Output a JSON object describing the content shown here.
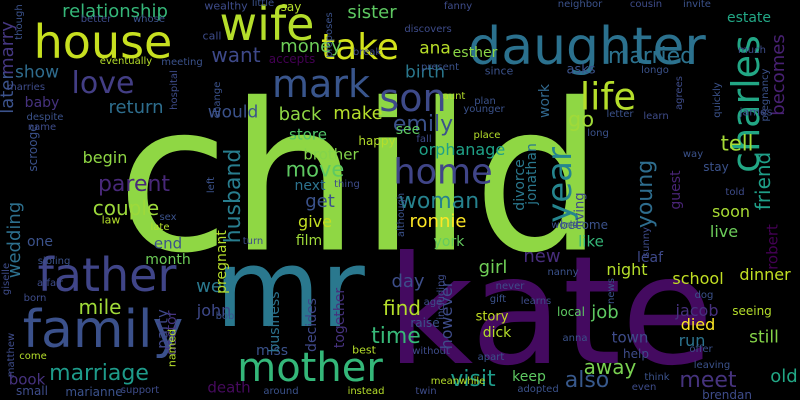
{
  "palette": {
    "background": "#000000"
  },
  "words": [
    {
      "text": "child",
      "color": "#8fd744"
    },
    {
      "text": "kate",
      "color": "#440a60"
    },
    {
      "text": "mr",
      "color": "#2a788e"
    },
    {
      "text": "daughter",
      "color": "#2b718e"
    },
    {
      "text": "house",
      "color": "#c7e020"
    },
    {
      "text": "wife",
      "color": "#b5de2b"
    },
    {
      "text": "take",
      "color": "#d2e21b"
    },
    {
      "text": "mark",
      "color": "#39558c"
    },
    {
      "text": "son",
      "color": "#3e4a89"
    },
    {
      "text": "love",
      "color": "#433e85"
    },
    {
      "text": "father",
      "color": "#404588"
    },
    {
      "text": "family",
      "color": "#3b518b"
    },
    {
      "text": "mother",
      "color": "#34b779"
    },
    {
      "text": "home",
      "color": "#404588"
    },
    {
      "text": "life",
      "color": "#b5de2b"
    },
    {
      "text": "charles",
      "color": "#22a785"
    },
    {
      "text": "year",
      "color": "#25858e"
    },
    {
      "text": "relationship",
      "color": "#35b779"
    },
    {
      "text": "sister",
      "color": "#5ec962"
    },
    {
      "text": "marry",
      "color": "#453781"
    },
    {
      "text": "later",
      "color": "#3b528b"
    },
    {
      "text": "wedding",
      "color": "#2d708e"
    },
    {
      "text": "married",
      "color": "#2c728e"
    },
    {
      "text": "want",
      "color": "#3e4989"
    },
    {
      "text": "money",
      "color": "#6ece58"
    },
    {
      "text": "ana",
      "color": "#b8de29"
    },
    {
      "text": "esther",
      "color": "#8bd646"
    },
    {
      "text": "estate",
      "color": "#22a785"
    },
    {
      "text": "becomes",
      "color": "#482173"
    },
    {
      "text": "friend",
      "color": "#1f9f88"
    },
    {
      "text": "show",
      "color": "#2f6c8e"
    },
    {
      "text": "birth",
      "color": "#2a788e"
    },
    {
      "text": "work",
      "color": "#31688e"
    },
    {
      "text": "emily",
      "color": "#3b528b"
    },
    {
      "text": "go",
      "color": "#a0da39"
    },
    {
      "text": "back",
      "color": "#8fd744"
    },
    {
      "text": "make",
      "color": "#b5de2b"
    },
    {
      "text": "return",
      "color": "#2e6e8e"
    },
    {
      "text": "baby",
      "color": "#46327e"
    },
    {
      "text": "would",
      "color": "#3b528b"
    },
    {
      "text": "store",
      "color": "#52c569"
    },
    {
      "text": "brother",
      "color": "#84d44b"
    },
    {
      "text": "orphanage",
      "color": "#1fa187"
    },
    {
      "text": "parent",
      "color": "#482878"
    },
    {
      "text": "husband",
      "color": "#287d8e"
    },
    {
      "text": "move",
      "color": "#5ec962"
    },
    {
      "text": "woman",
      "color": "#26828e"
    },
    {
      "text": "young",
      "color": "#2e6d8e"
    },
    {
      "text": "tell",
      "color": "#a5db36"
    },
    {
      "text": "couple",
      "color": "#9dd93b"
    },
    {
      "text": "get",
      "color": "#3b528b"
    },
    {
      "text": "ronnie",
      "color": "#fde725"
    },
    {
      "text": "guest",
      "color": "#482475"
    },
    {
      "text": "soon",
      "color": "#a8db34"
    },
    {
      "text": "live",
      "color": "#6ccd5a"
    },
    {
      "text": "give",
      "color": "#c2df23"
    },
    {
      "text": "film",
      "color": "#9fda3a"
    },
    {
      "text": "york",
      "color": "#65cb5e"
    },
    {
      "text": "like",
      "color": "#35b779"
    },
    {
      "text": "new",
      "color": "#472d7b"
    },
    {
      "text": "girl",
      "color": "#70cf57"
    },
    {
      "text": "night",
      "color": "#b5de2b"
    },
    {
      "text": "school",
      "color": "#c2df23"
    },
    {
      "text": "dinner",
      "color": "#c2df23"
    },
    {
      "text": "day",
      "color": "#3d4e8a"
    },
    {
      "text": "time",
      "color": "#37b878"
    },
    {
      "text": "mile",
      "color": "#a0da39"
    },
    {
      "text": "well",
      "color": "#2a788e"
    },
    {
      "text": "find",
      "color": "#b5de2b"
    },
    {
      "text": "marriage",
      "color": "#1e9b8a"
    },
    {
      "text": "visit",
      "color": "#1e9b8a"
    },
    {
      "text": "also",
      "color": "#38598c"
    },
    {
      "text": "away",
      "color": "#7ad151"
    },
    {
      "text": "meet",
      "color": "#46337e"
    },
    {
      "text": "old",
      "color": "#22a785"
    },
    {
      "text": "job",
      "color": "#5ec962"
    },
    {
      "text": "jacob",
      "color": "#46307e"
    },
    {
      "text": "died",
      "color": "#fde725"
    },
    {
      "text": "run",
      "color": "#2c738e"
    },
    {
      "text": "still",
      "color": "#86d549"
    },
    {
      "text": "death",
      "color": "#460a5d"
    },
    {
      "text": "party",
      "color": "#3f4788"
    },
    {
      "text": "miss",
      "color": "#3b528b"
    },
    {
      "text": "business",
      "color": "#2c728e"
    },
    {
      "text": "decides",
      "color": "#3f4889"
    },
    {
      "text": "together",
      "color": "#46327e"
    },
    {
      "text": "however",
      "color": "#3e4c8a"
    },
    {
      "text": "story",
      "color": "#c2df23"
    },
    {
      "text": "keep",
      "color": "#5ec962"
    },
    {
      "text": "local",
      "color": "#5ec962"
    },
    {
      "text": "dick",
      "color": "#b5de2b"
    },
    {
      "text": "town",
      "color": "#3e4c8a"
    },
    {
      "text": "help",
      "color": "#3e4c8a"
    },
    {
      "text": "book",
      "color": "#46327e"
    },
    {
      "text": "end",
      "color": "#3b528b"
    },
    {
      "text": "month",
      "color": "#6ece58"
    },
    {
      "text": "john",
      "color": "#3e4989"
    },
    {
      "text": "doctor",
      "color": "#463480"
    },
    {
      "text": "begin",
      "color": "#8fd744"
    },
    {
      "text": "pregnant",
      "color": "#b5de2b"
    },
    {
      "text": "divorce",
      "color": "#2a788e"
    },
    {
      "text": "jonathan",
      "color": "#2a788e"
    },
    {
      "text": "living",
      "color": "#3f4788"
    },
    {
      "text": "become",
      "color": "#3b528b"
    },
    {
      "text": "leaf",
      "color": "#3e4989"
    },
    {
      "text": "robert",
      "color": "#440154"
    },
    {
      "text": "stay",
      "color": "#3b528b"
    },
    {
      "text": "next",
      "color": "#2c728e"
    },
    {
      "text": "say",
      "color": "#b5de2b"
    },
    {
      "text": "call",
      "color": "#3e4c8a"
    },
    {
      "text": "see",
      "color": "#5ec962"
    },
    {
      "text": "asks",
      "color": "#3b528b"
    },
    {
      "text": "accepts",
      "color": "#440154"
    },
    {
      "text": "present",
      "color": "#3b528b"
    },
    {
      "text": "since",
      "color": "#3b528b"
    },
    {
      "text": "plan",
      "color": "#3b528b"
    },
    {
      "text": "younger",
      "color": "#3b528b"
    },
    {
      "text": "aunt",
      "color": "#b5de2b"
    },
    {
      "text": "happy",
      "color": "#b5de2b"
    },
    {
      "text": "although",
      "color": "#3b528b"
    },
    {
      "text": "law",
      "color": "#b5de2b"
    },
    {
      "text": "sex",
      "color": "#3b528b"
    },
    {
      "text": "late",
      "color": "#b5de2b"
    },
    {
      "text": "one",
      "color": "#3b528b"
    },
    {
      "text": "affair",
      "color": "#3e4c8a"
    },
    {
      "text": "born",
      "color": "#3e4c8a"
    },
    {
      "text": "named",
      "color": "#b5de2b"
    },
    {
      "text": "come",
      "color": "#b5de2b"
    },
    {
      "text": "small",
      "color": "#3e4c8a"
    },
    {
      "text": "marianne",
      "color": "#3b528b"
    },
    {
      "text": "support",
      "color": "#3e4c8a"
    },
    {
      "text": "around",
      "color": "#3b528b"
    },
    {
      "text": "instead",
      "color": "#b5de2b"
    },
    {
      "text": "twin",
      "color": "#3e4c8a"
    },
    {
      "text": "meanwhile",
      "color": "#b5de2b"
    },
    {
      "text": "adopted",
      "color": "#3b528b"
    },
    {
      "text": "even",
      "color": "#3e4c8a"
    },
    {
      "text": "think",
      "color": "#3b528b"
    },
    {
      "text": "brendan",
      "color": "#3e4c8a"
    },
    {
      "text": "offer",
      "color": "#3b528b"
    },
    {
      "text": "leaving",
      "color": "#3b528b"
    },
    {
      "text": "seeing",
      "color": "#b5de2b"
    },
    {
      "text": "dog",
      "color": "#3b528b"
    },
    {
      "text": "learns",
      "color": "#3e4c8a"
    },
    {
      "text": "anna",
      "color": "#3b528b"
    },
    {
      "text": "news",
      "color": "#3b528b"
    },
    {
      "text": "sunny",
      "color": "#3e4c8a"
    },
    {
      "text": "nanny",
      "color": "#3b528b"
    },
    {
      "text": "never",
      "color": "#3e4c8a"
    },
    {
      "text": "gift",
      "color": "#3b528b"
    },
    {
      "text": "including",
      "color": "#3e4c8a"
    },
    {
      "text": "raise",
      "color": "#3b528b"
    },
    {
      "text": "without",
      "color": "#3e4c8a"
    },
    {
      "text": "apart",
      "color": "#3b528b"
    },
    {
      "text": "best",
      "color": "#b5de2b"
    },
    {
      "text": "bob",
      "color": "#3b528b"
    },
    {
      "text": "matthew",
      "color": "#3e4c8a"
    },
    {
      "text": "sibling",
      "color": "#3b528b"
    },
    {
      "text": "giselle",
      "color": "#3e4c8a"
    },
    {
      "text": "scrooge",
      "color": "#3b528b"
    },
    {
      "text": "name",
      "color": "#3e4c8a"
    },
    {
      "text": "despite",
      "color": "#3b528b"
    },
    {
      "text": "marries",
      "color": "#3e4c8a"
    },
    {
      "text": "though",
      "color": "#3b528b"
    },
    {
      "text": "better",
      "color": "#3e4c8a"
    },
    {
      "text": "whose",
      "color": "#3b528b"
    },
    {
      "text": "wealthy",
      "color": "#3e4c8a"
    },
    {
      "text": "little",
      "color": "#3b528b"
    },
    {
      "text": "fanny",
      "color": "#3e4c8a"
    },
    {
      "text": "neighbor",
      "color": "#3b528b"
    },
    {
      "text": "cousin",
      "color": "#3e4c8a"
    },
    {
      "text": "invite",
      "color": "#3b528b"
    },
    {
      "text": "discovers",
      "color": "#3e4c8a"
    },
    {
      "text": "proposes",
      "color": "#3b528b"
    },
    {
      "text": "break",
      "color": "#3e4c8a"
    },
    {
      "text": "eventually",
      "color": "#b5de2b"
    },
    {
      "text": "meeting",
      "color": "#3b528b"
    },
    {
      "text": "hospital",
      "color": "#3e4c8a"
    },
    {
      "text": "longo",
      "color": "#3b528b"
    },
    {
      "text": "much",
      "color": "#3e4c8a"
    },
    {
      "text": "pregnancy",
      "color": "#3b528b"
    },
    {
      "text": "agrees",
      "color": "#3e4c8a"
    },
    {
      "text": "quickly",
      "color": "#3b528b"
    },
    {
      "text": "james",
      "color": "#3e4c8a"
    },
    {
      "text": "letter",
      "color": "#3b528b"
    },
    {
      "text": "learn",
      "color": "#3e4c8a"
    },
    {
      "text": "long",
      "color": "#3b528b"
    },
    {
      "text": "fall",
      "color": "#3e4c8a"
    },
    {
      "text": "place",
      "color": "#b5de2b"
    },
    {
      "text": "way",
      "color": "#3b528b"
    },
    {
      "text": "told",
      "color": "#3e4c8a"
    },
    {
      "text": "left",
      "color": "#3b528b"
    },
    {
      "text": "turn",
      "color": "#3e4c8a"
    },
    {
      "text": "change",
      "color": "#3b528b"
    },
    {
      "text": "thing",
      "color": "#3e4c8a"
    },
    {
      "text": "world",
      "color": "#3b528b"
    },
    {
      "text": "age",
      "color": "#3e4c8a"
    }
  ]
}
